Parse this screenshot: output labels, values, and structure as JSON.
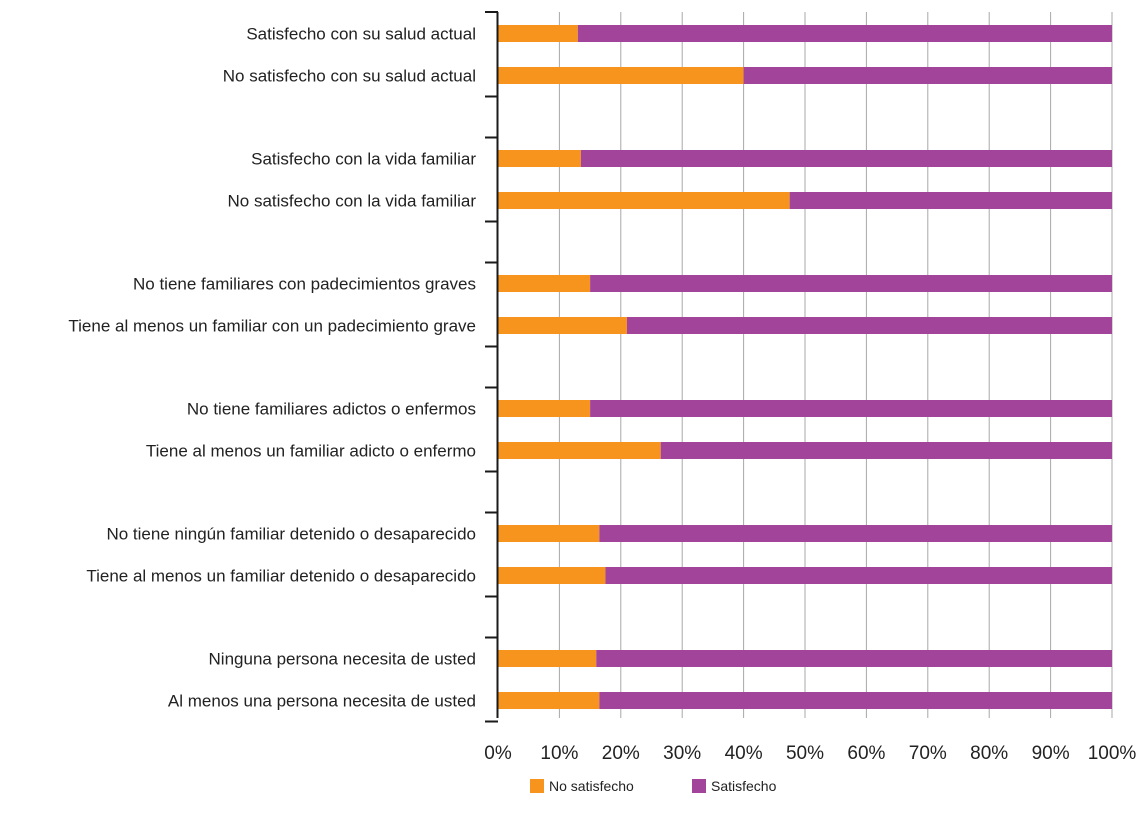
{
  "chart_data": {
    "type": "bar",
    "orientation": "horizontal",
    "stacked": true,
    "percent_stacked": true,
    "categories": [
      "Satisfecho con su salud actual",
      "No satisfecho con su salud actual",
      "Satisfecho con la vida familiar",
      "No satisfecho con la vida familiar",
      "No tiene familiares con padecimientos graves",
      "Tiene al menos un familiar con un padecimiento grave",
      "No tiene familiares adictos o enfermos",
      "Tiene al menos un familiar adicto o enfermo",
      "No tiene ningún familiar detenido o desaparecido",
      "Tiene al menos un familiar detenido o desaparecido",
      "Ninguna persona necesita de usted",
      "Al menos una persona necesita de usted"
    ],
    "series": [
      {
        "name": "No satisfecho",
        "color": "#f7941d",
        "values": [
          13,
          40,
          13.5,
          47.5,
          15,
          21,
          15,
          26.5,
          16.5,
          17.5,
          16,
          16.5
        ]
      },
      {
        "name": "Satisfecho",
        "color": "#a3449b",
        "values": [
          87,
          60,
          86.5,
          52.5,
          85,
          79,
          85,
          73.5,
          83.5,
          82.5,
          84,
          83.5
        ]
      }
    ],
    "xlim": [
      0,
      100
    ],
    "x_ticks": [
      "0%",
      "10%",
      "20%",
      "30%",
      "40%",
      "50%",
      "60%",
      "70%",
      "80%",
      "90%",
      "100%"
    ],
    "grid": "vertical",
    "legend_position": "bottom",
    "title": "",
    "xlabel": "",
    "ylabel": ""
  }
}
